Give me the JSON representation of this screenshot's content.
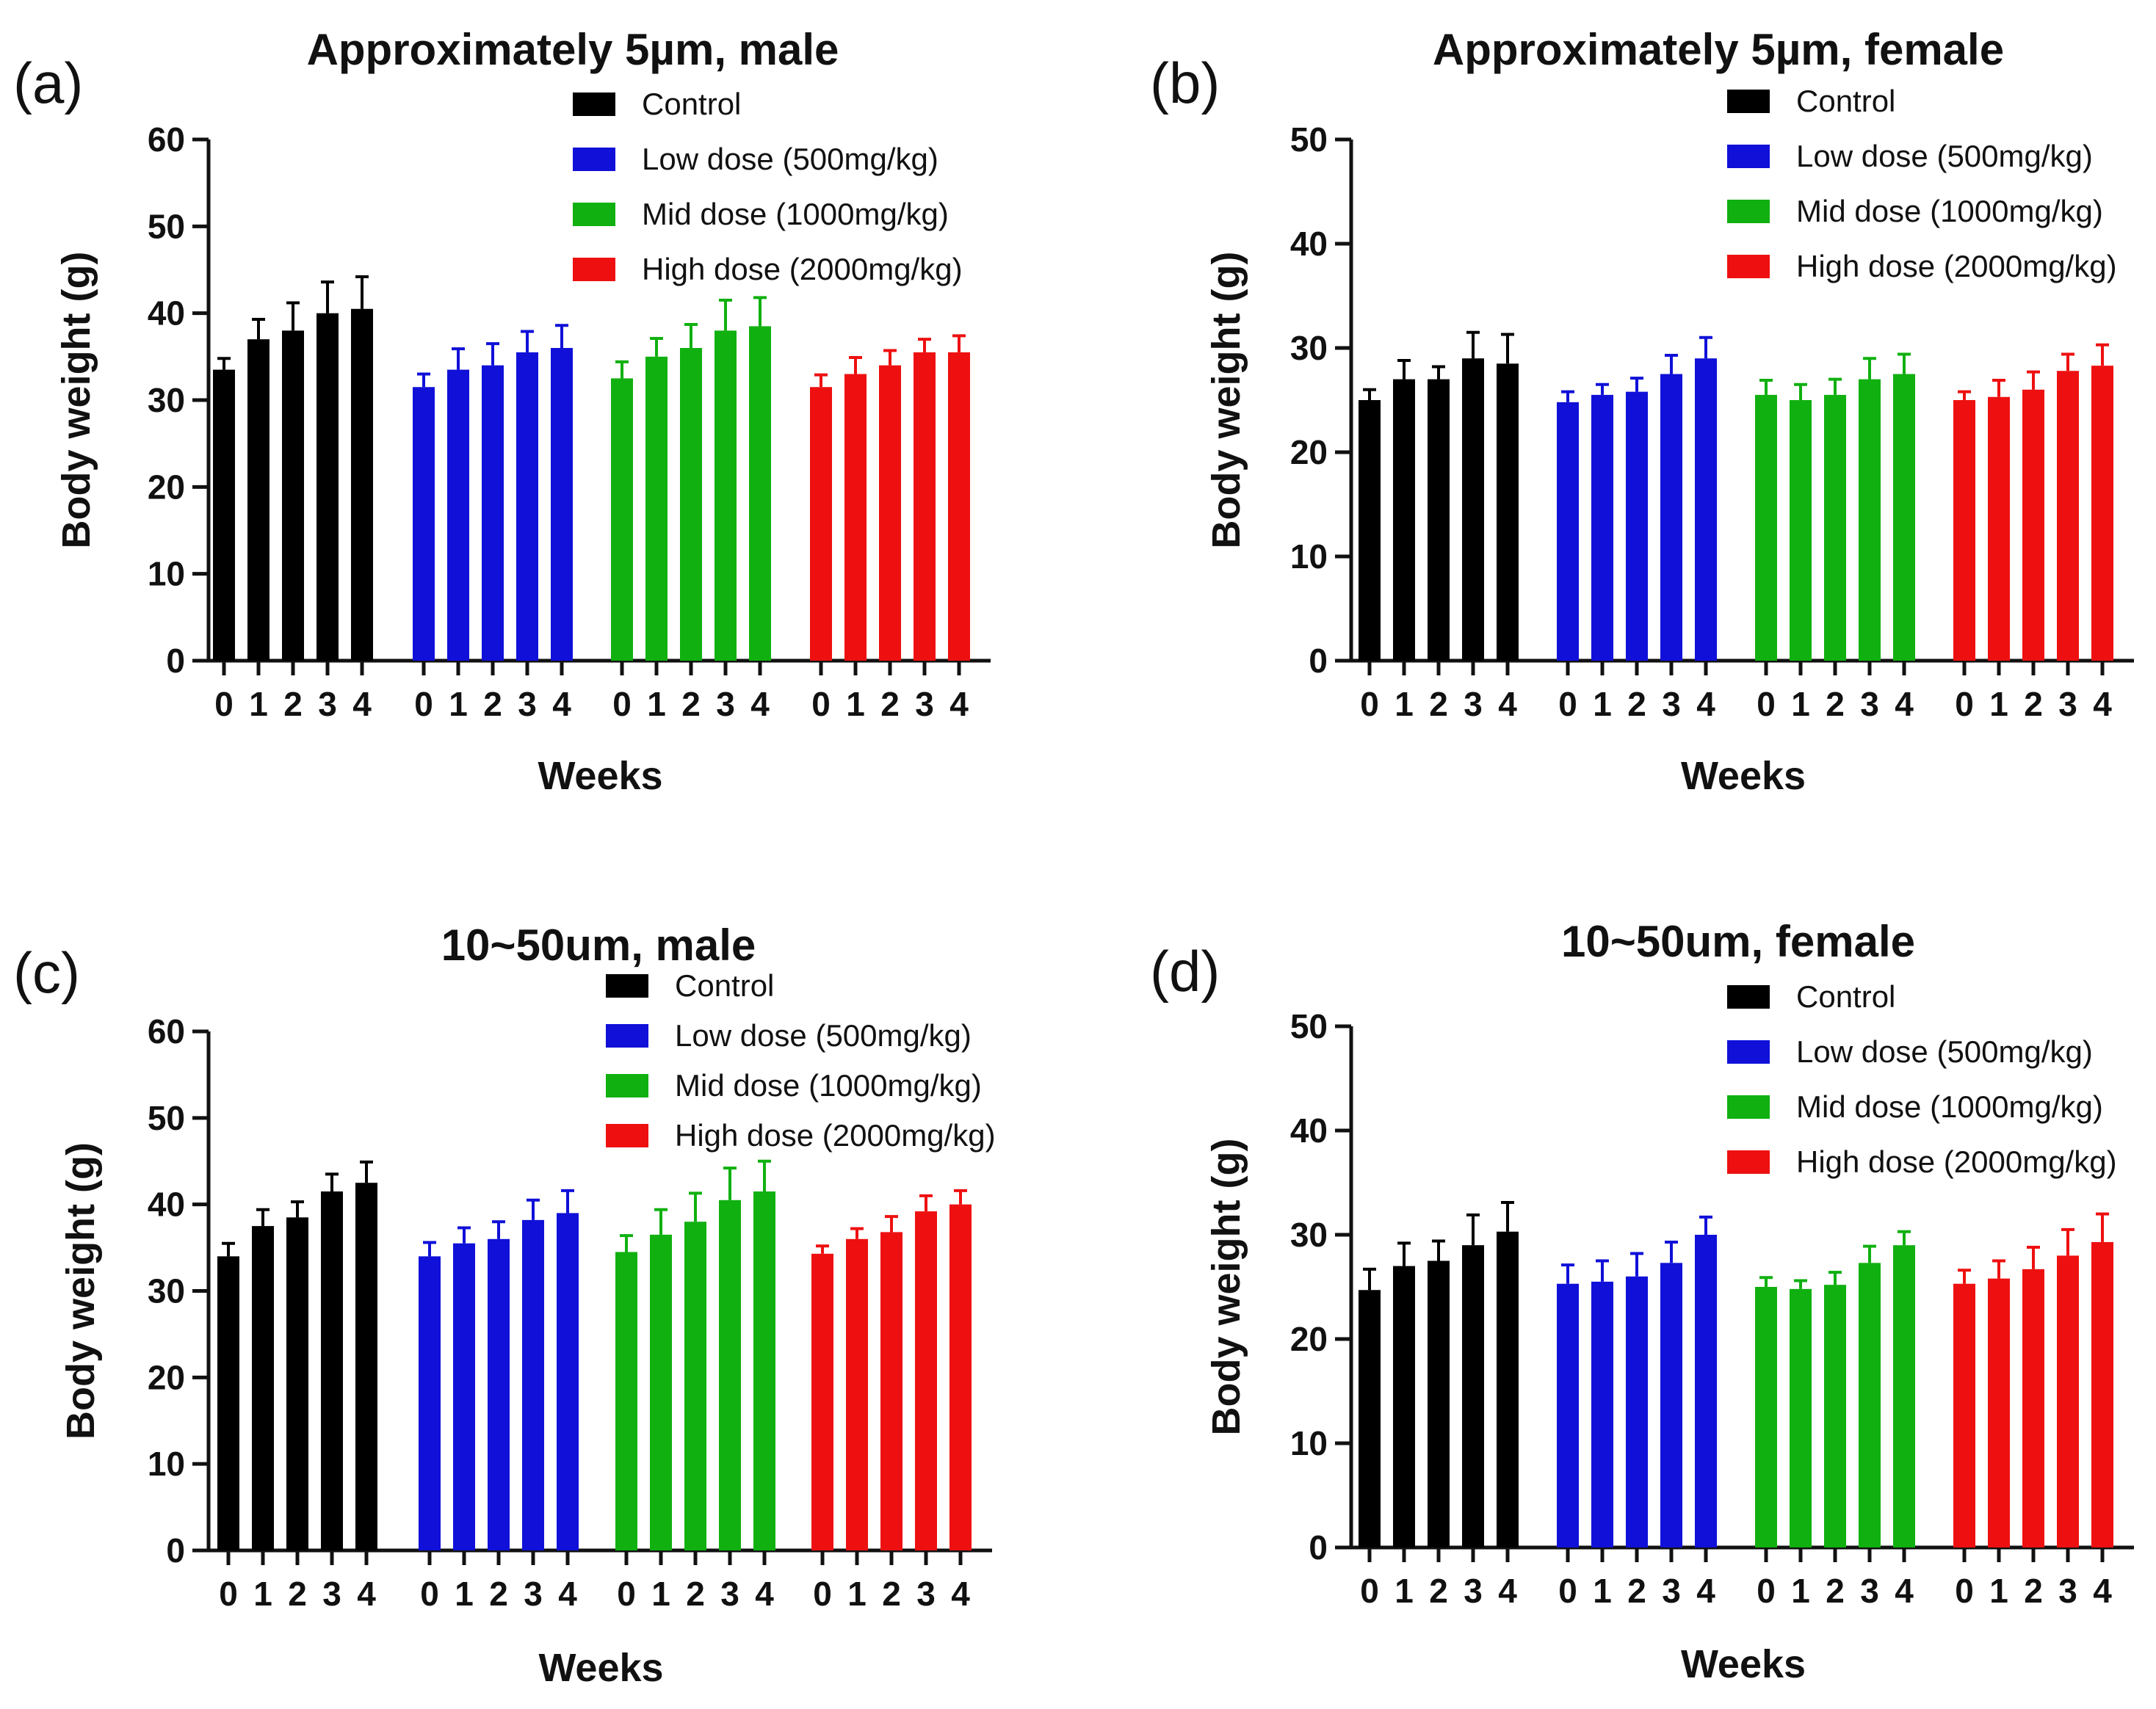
{
  "colors": {
    "control": "#000000",
    "low": "#1010d8",
    "mid": "#10b010",
    "high": "#ee1010"
  },
  "chart_data": [
    {
      "type": "bar",
      "panel_label": "(a)",
      "title": "Approximately 5µm,  male",
      "xlabel": "Weeks",
      "ylabel": "Body weight (g)",
      "ylim": [
        0,
        60
      ],
      "yticks": [
        0,
        10,
        20,
        30,
        40,
        50,
        60
      ],
      "categories": [
        "0",
        "1",
        "2",
        "3",
        "4"
      ],
      "legend_position": "top-right",
      "series": [
        {
          "name": "Control",
          "color_key": "control",
          "values": [
            33.5,
            37,
            38,
            40,
            40.5
          ],
          "errors": [
            1.3,
            2.3,
            3.2,
            3.6,
            3.7
          ]
        },
        {
          "name": "Low dose (500mg/kg)",
          "color_key": "low",
          "values": [
            31.5,
            33.5,
            34,
            35.5,
            36
          ],
          "errors": [
            1.5,
            2.4,
            2.5,
            2.4,
            2.6
          ]
        },
        {
          "name": "Mid dose (1000mg/kg)",
          "color_key": "mid",
          "values": [
            32.5,
            35,
            36,
            38,
            38.5
          ],
          "errors": [
            1.9,
            2.1,
            2.7,
            3.5,
            3.3
          ]
        },
        {
          "name": "High dose (2000mg/kg)",
          "color_key": "high",
          "values": [
            31.5,
            33,
            34,
            35.5,
            35.5
          ],
          "errors": [
            1.4,
            1.9,
            1.7,
            1.5,
            1.9
          ]
        }
      ]
    },
    {
      "type": "bar",
      "panel_label": "(b)",
      "title": "Approximately 5µm,  female",
      "xlabel": "Weeks",
      "ylabel": "Body weight (g)",
      "ylim": [
        0,
        50
      ],
      "yticks": [
        0,
        10,
        20,
        30,
        40,
        50
      ],
      "categories": [
        "0",
        "1",
        "2",
        "3",
        "4"
      ],
      "legend_position": "top-right",
      "series": [
        {
          "name": "Control",
          "color_key": "control",
          "values": [
            25,
            27,
            27,
            29,
            28.5
          ],
          "errors": [
            1.0,
            1.8,
            1.2,
            2.5,
            2.8
          ]
        },
        {
          "name": "Low dose (500mg/kg)",
          "color_key": "low",
          "values": [
            24.8,
            25.5,
            25.8,
            27.5,
            29
          ],
          "errors": [
            1.0,
            1.0,
            1.3,
            1.8,
            2.0
          ]
        },
        {
          "name": "Mid dose (1000mg/kg)",
          "color_key": "mid",
          "values": [
            25.5,
            25,
            25.5,
            27,
            27.5
          ],
          "errors": [
            1.4,
            1.5,
            1.5,
            2.0,
            1.9
          ]
        },
        {
          "name": "High dose (2000mg/kg)",
          "color_key": "high",
          "values": [
            25,
            25.3,
            26,
            27.8,
            28.3
          ],
          "errors": [
            0.8,
            1.6,
            1.7,
            1.6,
            2.0
          ]
        }
      ]
    },
    {
      "type": "bar",
      "panel_label": "(c)",
      "title": "10~50um, male",
      "xlabel": "Weeks",
      "ylabel": "Body weight (g)",
      "ylim": [
        0,
        60
      ],
      "yticks": [
        0,
        10,
        20,
        30,
        40,
        50,
        60
      ],
      "categories": [
        "0",
        "1",
        "2",
        "3",
        "4"
      ],
      "legend_position": "top-right",
      "series": [
        {
          "name": "Control",
          "color_key": "control",
          "values": [
            34,
            37.5,
            38.5,
            41.5,
            42.5
          ],
          "errors": [
            1.5,
            1.9,
            1.8,
            2.0,
            2.4
          ]
        },
        {
          "name": "Low dose (500mg/kg)",
          "color_key": "low",
          "values": [
            34,
            35.5,
            36,
            38.2,
            39
          ],
          "errors": [
            1.6,
            1.8,
            2.0,
            2.3,
            2.6
          ]
        },
        {
          "name": "Mid dose (1000mg/kg)",
          "color_key": "mid",
          "values": [
            34.5,
            36.5,
            38,
            40.5,
            41.5
          ],
          "errors": [
            1.9,
            2.9,
            3.3,
            3.7,
            3.5
          ]
        },
        {
          "name": "High dose (2000mg/kg)",
          "color_key": "high",
          "values": [
            34.3,
            36,
            36.8,
            39.2,
            40
          ],
          "errors": [
            0.9,
            1.2,
            1.8,
            1.8,
            1.6
          ]
        }
      ]
    },
    {
      "type": "bar",
      "panel_label": "(d)",
      "title": "10~50um, female",
      "xlabel": "Weeks",
      "ylabel": "Body weight (g)",
      "ylim": [
        0,
        50
      ],
      "yticks": [
        0,
        10,
        20,
        30,
        40,
        50
      ],
      "categories": [
        "0",
        "1",
        "2",
        "3",
        "4"
      ],
      "legend_position": "top-right",
      "series": [
        {
          "name": "Control",
          "color_key": "control",
          "values": [
            24.7,
            27,
            27.5,
            29,
            30.3
          ],
          "errors": [
            2.0,
            2.2,
            1.9,
            2.9,
            2.8
          ]
        },
        {
          "name": "Low dose (500mg/kg)",
          "color_key": "low",
          "values": [
            25.3,
            25.5,
            26,
            27.3,
            30
          ],
          "errors": [
            1.8,
            2.0,
            2.2,
            2.0,
            1.7
          ]
        },
        {
          "name": "Mid dose (1000mg/kg)",
          "color_key": "mid",
          "values": [
            25,
            24.8,
            25.2,
            27.3,
            29
          ],
          "errors": [
            0.9,
            0.8,
            1.2,
            1.6,
            1.3
          ]
        },
        {
          "name": "High dose (2000mg/kg)",
          "color_key": "high",
          "values": [
            25.3,
            25.8,
            26.7,
            28,
            29.3
          ],
          "errors": [
            1.3,
            1.7,
            2.1,
            2.5,
            2.7
          ]
        }
      ]
    }
  ]
}
